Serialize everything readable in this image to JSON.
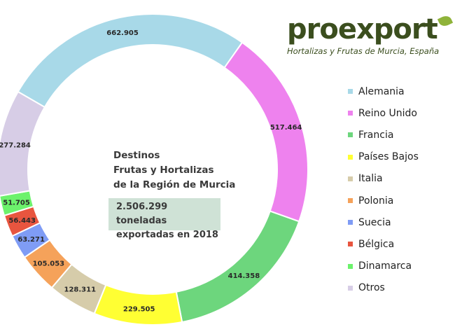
{
  "brand": {
    "name": "proexport",
    "tagline": "Hortalizas y Frutas de Murcia, España"
  },
  "center": {
    "line1": "Destinos",
    "line2": "Frutas y Hortalizas",
    "line3": "de la Región de Murcia",
    "total_line1": "2.506.299 toneladas",
    "total_line2": "exportadas en 2018"
  },
  "chart_data": {
    "type": "pie",
    "categories": [
      "Alemania",
      "Reino Unido",
      "Francia",
      "Países Bajos",
      "Italia",
      "Polonia",
      "Suecia",
      "Bélgica",
      "Dinamarca",
      "Otros"
    ],
    "values": [
      662905,
      517464,
      414358,
      229505,
      128311,
      105053,
      63271,
      56443,
      51705,
      277284
    ],
    "data_labels": [
      "662.905",
      "517.464",
      "414.358",
      "229.505",
      "128.311",
      "105.053",
      "63.271",
      "56.443",
      "51.705",
      "277.284"
    ],
    "colors": [
      "#a8d9e8",
      "#ee82ee",
      "#6dd67d",
      "#ffff33",
      "#d6ccaa",
      "#f5a25a",
      "#7f9cf5",
      "#e8553f",
      "#6cf26c",
      "#d7cde6"
    ],
    "legend_placement": "right"
  }
}
